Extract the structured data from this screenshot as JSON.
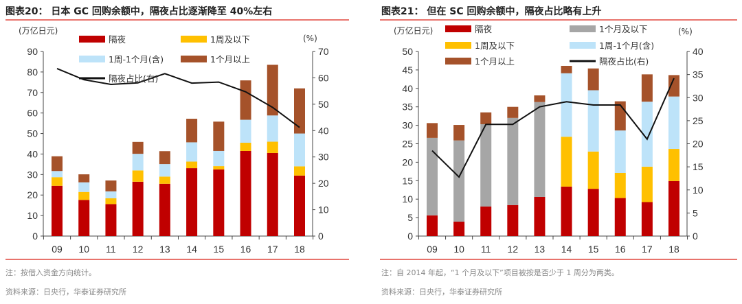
{
  "colors": {
    "overnight": "#C00000",
    "week_or_less": "#FFC000",
    "week_to_month": "#BDE3F9",
    "over_month": "#A5522A",
    "month_or_less": "#A6A6A6",
    "ratio_line": "#111111",
    "rule": "#E0453B"
  },
  "chart_data": [
    {
      "type": "bar",
      "stacked": true,
      "title": "图表20：  日本 GC 回购余额中，隔夜占比逐渐降至 40%左右",
      "ylabel": "(万亿日元)",
      "y2label": "(%)",
      "ylim": [
        0,
        90
      ],
      "yticks": [
        0,
        10,
        20,
        30,
        40,
        50,
        60,
        70,
        80,
        90
      ],
      "y2lim": [
        0,
        70
      ],
      "y2ticks": [
        0,
        10,
        20,
        30,
        40,
        50,
        60,
        70
      ],
      "categories": [
        "09",
        "10",
        "11",
        "12",
        "13",
        "14",
        "15",
        "16",
        "17",
        "18"
      ],
      "series": [
        {
          "name": "隔夜",
          "color_key": "overnight",
          "values": [
            24.5,
            17.6,
            15.6,
            26.5,
            25.5,
            33.1,
            32.5,
            41.5,
            40.5,
            29.5
          ]
        },
        {
          "name": "1周及以下",
          "color_key": "week_or_less",
          "values": [
            4.2,
            3.9,
            2.8,
            5.5,
            3.5,
            3.2,
            1.6,
            4.0,
            5.5,
            4.5
          ]
        },
        {
          "name": "1周-1个月(含)",
          "color_key": "week_to_month",
          "values": [
            3.0,
            4.7,
            3.4,
            8.1,
            6.1,
            9.4,
            7.4,
            11.2,
            12.8,
            16.0
          ]
        },
        {
          "name": "1个月以上",
          "color_key": "over_month",
          "values": [
            7.2,
            3.9,
            5.3,
            5.8,
            6.3,
            11.5,
            14.3,
            19.2,
            24.7,
            22.0
          ]
        }
      ],
      "line": {
        "name": "隔夜占比(右)",
        "axis": "right",
        "values": [
          63.5,
          59.3,
          57.5,
          58.1,
          61.6,
          58.0,
          58.4,
          54.7,
          48.8,
          41.2
        ]
      },
      "note": "注：按借入资金方向统计。",
      "source": "资料来源：日央行，华泰证券研究所"
    },
    {
      "type": "bar",
      "stacked": true,
      "title": "图表21：  但在 SC 回购余额中，隔夜占比略有上升",
      "ylabel": "(万亿日元)",
      "y2label": "(%)",
      "ylim": [
        0,
        50
      ],
      "yticks": [
        0,
        5,
        10,
        15,
        20,
        25,
        30,
        35,
        40,
        45,
        50
      ],
      "y2lim": [
        0,
        40
      ],
      "y2ticks": [
        0,
        5,
        10,
        15,
        20,
        25,
        30,
        35,
        40
      ],
      "categories": [
        "09",
        "10",
        "11",
        "12",
        "13",
        "14",
        "15",
        "16",
        "17",
        "18"
      ],
      "series": [
        {
          "name": "隔夜",
          "color_key": "overnight",
          "values": [
            5.6,
            3.9,
            8.0,
            8.4,
            10.6,
            13.4,
            12.8,
            10.3,
            9.2,
            14.9
          ]
        },
        {
          "name": "1个月及以下",
          "color_key": "month_or_less",
          "values": [
            21.0,
            22.0,
            22.3,
            23.6,
            25.7,
            0,
            0,
            0,
            0,
            0
          ]
        },
        {
          "name": "1周及以下",
          "color_key": "week_or_less",
          "values": [
            0,
            0,
            0,
            0,
            0,
            13.5,
            10.1,
            6.8,
            9.6,
            8.7
          ]
        },
        {
          "name": "1周-1个月(含)",
          "color_key": "week_to_month",
          "values": [
            0,
            0,
            0,
            0,
            0,
            17.2,
            16.6,
            11.5,
            17.6,
            14.2
          ]
        },
        {
          "name": "1个月以上",
          "color_key": "over_month",
          "values": [
            4.0,
            4.2,
            3.2,
            3.0,
            1.8,
            2.0,
            5.9,
            7.9,
            7.4,
            5.8
          ]
        }
      ],
      "line": {
        "name": "隔夜占比(右)",
        "axis": "right",
        "values": [
          18.5,
          12.8,
          24.2,
          24.2,
          28.0,
          29.1,
          28.4,
          28.4,
          21.0,
          34.2
        ]
      },
      "note": "注：自 2014 年起，“1 个月及以下”项目被按是否少于 1 周分为两类。",
      "source": "资料来源：日央行，华泰证券研究所"
    }
  ]
}
